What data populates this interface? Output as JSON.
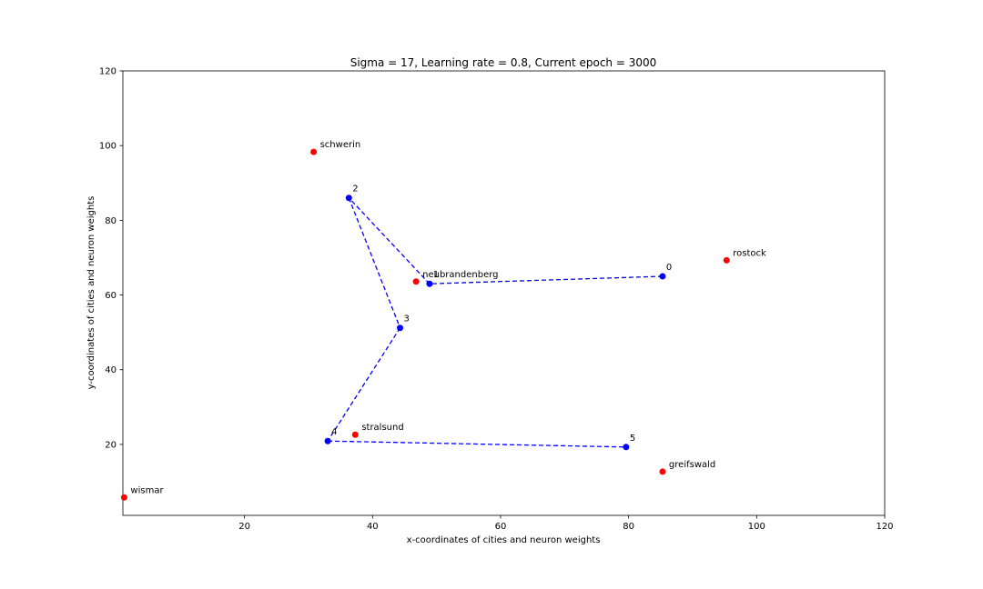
{
  "chart_data": {
    "type": "scatter",
    "title": "Sigma = 17, Learning rate = 0.8, Current epoch = 3000",
    "xlabel": "x-coordinates of cities and neuron weights",
    "ylabel": "y-coordinates of cities and neuron weights",
    "xlim": [
      1,
      120
    ],
    "ylim": [
      1,
      120
    ],
    "xticks": [
      20,
      40,
      60,
      80,
      100,
      120
    ],
    "yticks": [
      20,
      40,
      60,
      80,
      100,
      120
    ],
    "xtick_labels": [
      "20",
      "40",
      "60",
      "80",
      "100",
      "120"
    ],
    "ytick_labels": [
      "20",
      "40",
      "60",
      "80",
      "100",
      "120"
    ],
    "grid": false,
    "colors": {
      "cities": "#ff0000",
      "neurons": "#0000ff"
    },
    "cities": [
      {
        "name": "schwerin",
        "x": 30.8,
        "y": 98.3
      },
      {
        "name": "rostock",
        "x": 95.3,
        "y": 69.3
      },
      {
        "name": "neubrandenberg",
        "x": 46.8,
        "y": 63.6
      },
      {
        "name": "stralsund",
        "x": 37.3,
        "y": 22.6
      },
      {
        "name": "greifswald",
        "x": 85.3,
        "y": 12.7
      },
      {
        "name": "wismar",
        "x": 1.2,
        "y": 5.8
      }
    ],
    "neurons": [
      {
        "label": "0",
        "x": 85.3,
        "y": 65.0
      },
      {
        "label": "1",
        "x": 48.9,
        "y": 63.0
      },
      {
        "label": "2",
        "x": 36.3,
        "y": 86.0
      },
      {
        "label": "3",
        "x": 44.3,
        "y": 51.2
      },
      {
        "label": "4",
        "x": 33.0,
        "y": 20.9
      },
      {
        "label": "5",
        "x": 79.6,
        "y": 19.3
      }
    ],
    "path_order": [
      0,
      1,
      2,
      3,
      4,
      5
    ]
  }
}
